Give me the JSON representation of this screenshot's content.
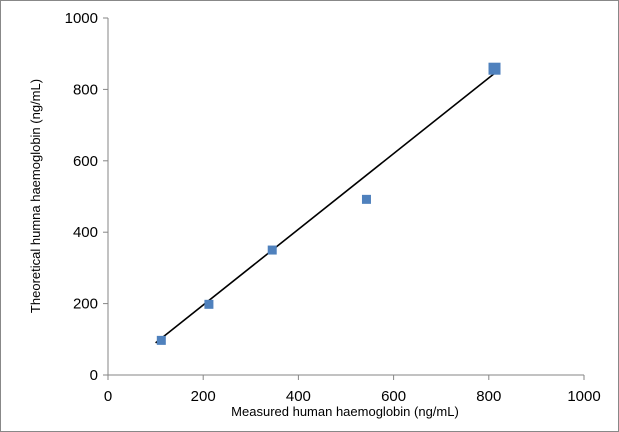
{
  "chart_data": {
    "type": "scatter",
    "title": "",
    "xlabel": "Measured human haemoglobin (ng/mL)",
    "ylabel": "Theoretical humna haemoglobin (ng/mL)",
    "xlim": [
      0,
      1000
    ],
    "ylim": [
      0,
      1000
    ],
    "xticks": [
      "0",
      "200",
      "400",
      "600",
      "800",
      "1000"
    ],
    "yticks": [
      "0",
      "200",
      "400",
      "600",
      "800",
      "1000"
    ],
    "grid": false,
    "legend": "none",
    "marker_color": "#4F81BD",
    "trendline_color": "#000000",
    "series": [
      {
        "points": [
          {
            "x": 112,
            "y": 97
          },
          {
            "x": 212,
            "y": 198
          },
          {
            "x": 345,
            "y": 350
          },
          {
            "x": 543,
            "y": 492
          },
          {
            "x": 812,
            "y": 858
          }
        ]
      }
    ],
    "trendline": {
      "x": [
        100,
        812
      ],
      "y": [
        90,
        845
      ]
    }
  }
}
